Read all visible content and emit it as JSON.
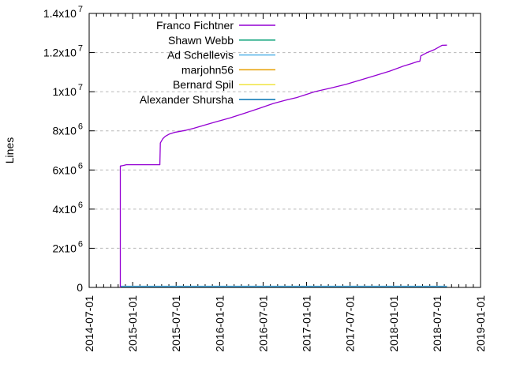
{
  "chart_data": {
    "type": "line",
    "title": "",
    "ylabel": "Lines",
    "background": "#ffffff",
    "axis_color": "#000000",
    "grid": {
      "horizontal_dashed": true,
      "vertical": false,
      "color": "#b8b8b8"
    },
    "x_axis": {
      "kind": "time",
      "range": [
        "2014-07-01",
        "2019-01-01"
      ],
      "major_ticks": [
        "2014-07-01",
        "2015-01-01",
        "2015-07-01",
        "2016-01-01",
        "2016-07-01",
        "2017-01-01",
        "2017-07-01",
        "2018-01-01",
        "2018-07-01",
        "2019-01-01"
      ],
      "minor_tick_interval_months": 1,
      "tick_label_rotation_deg": -90
    },
    "y_axis": {
      "range": [
        0,
        14000000
      ],
      "ticks": [
        {
          "value": 0,
          "mantissa": "0",
          "exponent": ""
        },
        {
          "value": 2000000,
          "mantissa": "2x10",
          "exponent": "6"
        },
        {
          "value": 4000000,
          "mantissa": "4x10",
          "exponent": "6"
        },
        {
          "value": 6000000,
          "mantissa": "6x10",
          "exponent": "6"
        },
        {
          "value": 8000000,
          "mantissa": "8x10",
          "exponent": "6"
        },
        {
          "value": 10000000,
          "mantissa": "1x10",
          "exponent": "7"
        },
        {
          "value": 12000000,
          "mantissa": "1.2x10",
          "exponent": "7"
        },
        {
          "value": 14000000,
          "mantissa": "1.4x10",
          "exponent": "7"
        }
      ]
    },
    "legend": {
      "position": "top-inside"
    },
    "series": [
      {
        "name": "Franco Fichtner",
        "color": "#9400d3",
        "points": [
          [
            "2014-11-10",
            0
          ],
          [
            "2014-11-10",
            6200000
          ],
          [
            "2014-11-22",
            6230000
          ],
          [
            "2014-12-05",
            6270000
          ],
          [
            "2015-04-24",
            6270000
          ],
          [
            "2015-04-26",
            7380000
          ],
          [
            "2015-05-06",
            7600000
          ],
          [
            "2015-05-16",
            7720000
          ],
          [
            "2015-06-02",
            7830000
          ],
          [
            "2015-06-24",
            7920000
          ],
          [
            "2015-08-08",
            8020000
          ],
          [
            "2015-09-14",
            8130000
          ],
          [
            "2015-10-20",
            8260000
          ],
          [
            "2015-12-12",
            8450000
          ],
          [
            "2016-02-14",
            8660000
          ],
          [
            "2016-04-15",
            8900000
          ],
          [
            "2016-06-15",
            9150000
          ],
          [
            "2016-08-14",
            9400000
          ],
          [
            "2016-10-14",
            9600000
          ],
          [
            "2016-11-20",
            9700000
          ],
          [
            "2017-01-05",
            9880000
          ],
          [
            "2017-02-05",
            10000000
          ],
          [
            "2017-04-15",
            10200000
          ],
          [
            "2017-06-15",
            10380000
          ],
          [
            "2017-08-15",
            10600000
          ],
          [
            "2017-10-15",
            10820000
          ],
          [
            "2017-12-15",
            11050000
          ],
          [
            "2018-02-10",
            11300000
          ],
          [
            "2018-03-12",
            11420000
          ],
          [
            "2018-04-08",
            11530000
          ],
          [
            "2018-04-20",
            11560000
          ],
          [
            "2018-04-24",
            11830000
          ],
          [
            "2018-05-20",
            12000000
          ],
          [
            "2018-06-20",
            12150000
          ],
          [
            "2018-07-12",
            12300000
          ],
          [
            "2018-07-22",
            12370000
          ],
          [
            "2018-08-12",
            12380000
          ]
        ]
      },
      {
        "name": "Shawn Webb",
        "color": "#009e73",
        "points": [
          [
            "2014-11-10",
            55000
          ],
          [
            "2018-08-12",
            55000
          ]
        ]
      },
      {
        "name": "Ad Schellevis",
        "color": "#56b4e9",
        "points": [
          [
            "2014-11-10",
            60000
          ],
          [
            "2018-08-12",
            60000
          ]
        ]
      },
      {
        "name": "marjohn56",
        "color": "#e69f00",
        "points": [
          [
            "2014-11-10",
            52000
          ],
          [
            "2018-08-12",
            52000
          ]
        ]
      },
      {
        "name": "Bernard Spil",
        "color": "#f0e442",
        "points": [
          [
            "2014-11-10",
            50000
          ],
          [
            "2018-08-12",
            50000
          ]
        ]
      },
      {
        "name": "Alexander Shursha",
        "color": "#0072b2",
        "points": [
          [
            "2014-11-10",
            46000
          ],
          [
            "2018-08-12",
            46000
          ]
        ]
      }
    ],
    "draw_order": [
      1,
      3,
      4,
      5,
      2,
      0
    ]
  }
}
